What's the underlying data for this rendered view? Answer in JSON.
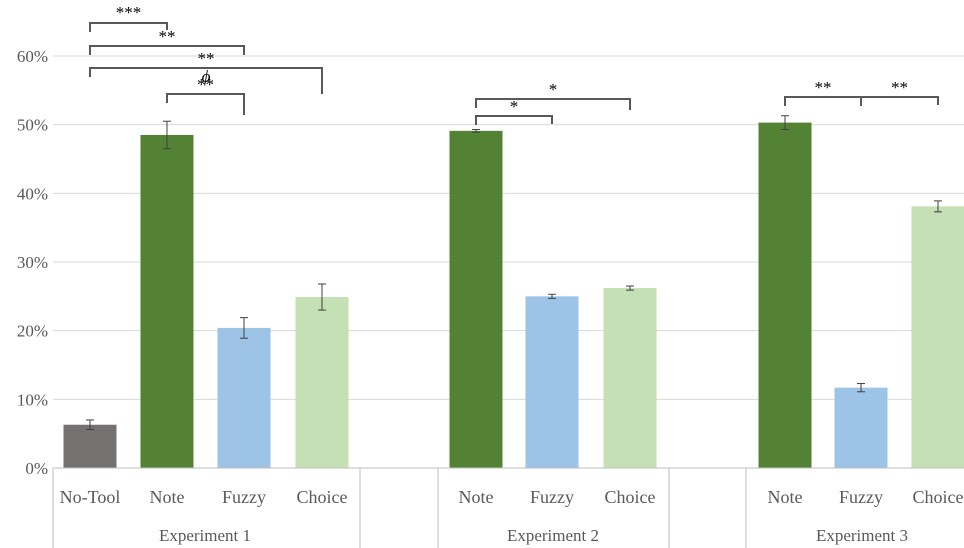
{
  "chart_data": {
    "type": "bar",
    "ylim": [
      0,
      60
    ],
    "yticks": [
      "0%",
      "10%",
      "20%",
      "30%",
      "40%",
      "50%",
      "60%"
    ],
    "grid": true,
    "groups": [
      {
        "label": "Experiment 1",
        "bars": [
          {
            "category": "No-Tool",
            "value": 6.3,
            "error": 0.7,
            "color": "#767171"
          },
          {
            "category": "Note",
            "value": 48.5,
            "error": 2.0,
            "color": "#548235"
          },
          {
            "category": "Fuzzy",
            "value": 20.4,
            "error": 1.5,
            "color": "#9dc3e6"
          },
          {
            "category": "Choice",
            "value": 24.9,
            "error": 1.9,
            "color": "#c5e0b4"
          }
        ]
      },
      {
        "label": "Experiment 2",
        "bars": [
          {
            "category": "Note",
            "value": 49.1,
            "error": 0.2,
            "color": "#548235"
          },
          {
            "category": "Fuzzy",
            "value": 25.0,
            "error": 0.3,
            "color": "#9dc3e6"
          },
          {
            "category": "Choice",
            "value": 26.2,
            "error": 0.3,
            "color": "#c5e0b4"
          }
        ]
      },
      {
        "label": "Experiment 3",
        "bars": [
          {
            "category": "Note",
            "value": 50.3,
            "error": 1.0,
            "color": "#548235"
          },
          {
            "category": "Fuzzy",
            "value": 11.7,
            "error": 0.6,
            "color": "#9dc3e6"
          },
          {
            "category": "Choice",
            "value": 38.1,
            "error": 0.8,
            "color": "#c5e0b4"
          }
        ]
      }
    ],
    "significance": [
      {
        "group": 0,
        "from": 0,
        "to": 1,
        "label": "***"
      },
      {
        "group": 0,
        "from": 0,
        "to": 2,
        "label": "**"
      },
      {
        "group": 0,
        "from": 0,
        "to": 3,
        "label": "**"
      },
      {
        "group": 0,
        "from": 0,
        "to": 3,
        "label": "ϕ"
      },
      {
        "group": 0,
        "from": 1,
        "to": 2,
        "label": "**"
      },
      {
        "group": 1,
        "from": 0,
        "to": 1,
        "label": "*"
      },
      {
        "group": 1,
        "from": 0,
        "to": 2,
        "label": "*"
      },
      {
        "group": 2,
        "from": 0,
        "to": 1,
        "label": "**"
      },
      {
        "group": 2,
        "from": 1,
        "to": 2,
        "label": "**"
      }
    ]
  }
}
